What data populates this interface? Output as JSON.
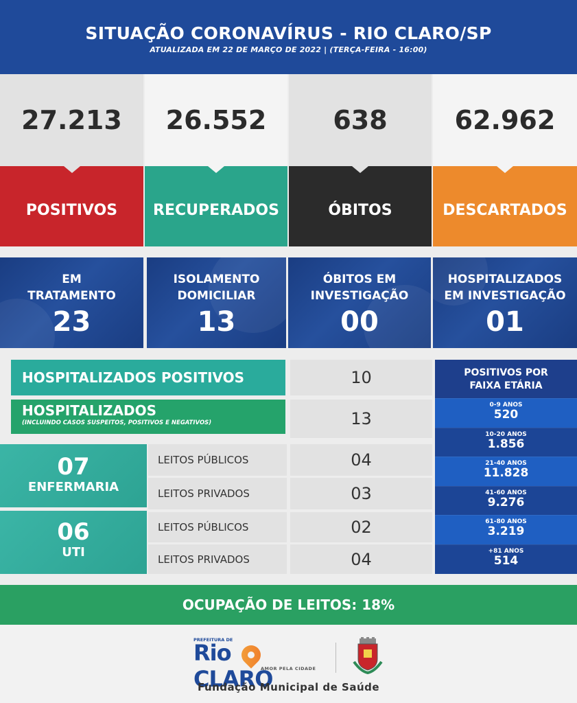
{
  "header": {
    "title": "SITUAÇÃO CORONAVÍRUS - RIO CLARO/SP",
    "subtitle": "ATUALIZADA EM 22 DE MARÇO DE 2022 | (TERÇA-FEIRA - 16:00)"
  },
  "counters": [
    {
      "value": "27.213",
      "label": "POSITIVOS",
      "color": "#c8252b"
    },
    {
      "value": "26.552",
      "label": "RECUPERADOS",
      "color": "#2aa58b"
    },
    {
      "value": "638",
      "label": "ÓBITOS",
      "color": "#2b2b2b"
    },
    {
      "value": "62.962",
      "label": "DESCARTADOS",
      "color": "#ed8a2c"
    }
  ],
  "status": [
    {
      "label_1": "EM",
      "label_2": "TRATAMENTO",
      "value": "23"
    },
    {
      "label_1": "ISOLAMENTO",
      "label_2": "DOMICILIAR",
      "value": "13"
    },
    {
      "label_1": "ÓBITOS EM",
      "label_2": "INVESTIGAÇÃO",
      "value": "00"
    },
    {
      "label_1": "HOSPITALIZADOS",
      "label_2": "EM INVESTIGAÇÃO",
      "value": "01"
    }
  ],
  "hospitalizados_positivos": {
    "label": "HOSPITALIZADOS POSITIVOS",
    "value": "10"
  },
  "hospitalizados": {
    "label": "HOSPITALIZADOS",
    "note": "(INCLUINDO CASOS SUSPEITOS, POSITIVOS E NEGATIVOS)",
    "value": "13"
  },
  "enfermaria": {
    "total": "07",
    "name": "ENFERMARIA",
    "publicos_label": "LEITOS PÚBLICOS",
    "publicos_value": "04",
    "privados_label": "LEITOS PRIVADOS",
    "privados_value": "03"
  },
  "uti": {
    "total": "06",
    "name": "UTI",
    "publicos_label": "LEITOS PÚBLICOS",
    "publicos_value": "02",
    "privados_label": "LEITOS PRIVADOS",
    "privados_value": "04"
  },
  "faixa_etaria": {
    "title_1": "POSITIVOS POR",
    "title_2": "FAIXA ETÁRIA",
    "rows": [
      {
        "range": "0-9 ANOS",
        "value": "520"
      },
      {
        "range": "10-20 ANOS",
        "value": "1.856"
      },
      {
        "range": "21-40 ANOS",
        "value": "11.828"
      },
      {
        "range": "41-60 ANOS",
        "value": "9.276"
      },
      {
        "range": "61-80 ANOS",
        "value": "3.219"
      },
      {
        "range": "+81 ANOS",
        "value": "514"
      }
    ]
  },
  "ocupacao": "OCUPAÇÃO DE LEITOS: 18%",
  "footer": {
    "logo_prefix": "PREFEITURA DE",
    "logo_name_1": "Rio",
    "logo_name_2": "CLARO",
    "logo_tagline": "AMOR PELA CIDADE",
    "foundation": "Fundação Municipal de Saúde"
  }
}
